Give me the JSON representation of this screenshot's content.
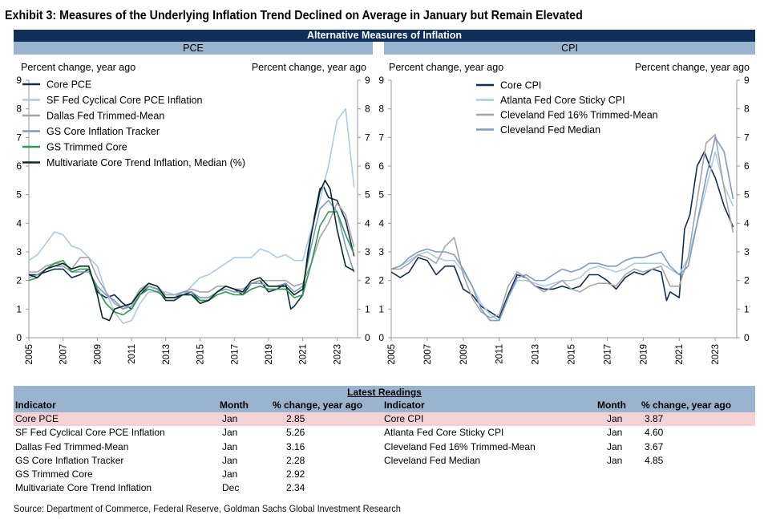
{
  "title": "Exhibit 3: Measures of the Underlying Inflation Trend Declined on Average in January but Remain Elevated",
  "banner": "Alternative Measures of Inflation",
  "source": "Source: Department of Commerce, Federal Reserve, Goldman Sachs Global Investment Research",
  "chart_data": [
    {
      "type": "line",
      "panel": "PCE",
      "ylabel_left": "Percent change, year ago",
      "ylabel_right": "Percent change, year ago",
      "ylim": [
        0,
        9
      ],
      "yticks": [
        "0",
        "1",
        "2",
        "3",
        "4",
        "5",
        "6",
        "7",
        "8",
        "9"
      ],
      "xlim": [
        2005,
        2024.2
      ],
      "xticks": [
        "2005",
        "2007",
        "2009",
        "2011",
        "2013",
        "2015",
        "2017",
        "2019",
        "2021",
        "2023"
      ],
      "legend_position": "top-left",
      "series": [
        {
          "name": "Core PCE",
          "color": "#0f2e5a",
          "width": 1.6,
          "x": [
            2005,
            2005.5,
            2006,
            2006.5,
            2007,
            2007.5,
            2008,
            2008.5,
            2009,
            2009.5,
            2010,
            2010.5,
            2011,
            2011.5,
            2012,
            2012.5,
            2013,
            2013.5,
            2014,
            2014.5,
            2015,
            2015.5,
            2016,
            2016.5,
            2017,
            2017.5,
            2018,
            2018.5,
            2019,
            2019.5,
            2020,
            2020.3,
            2020.5,
            2021,
            2021.3,
            2021.6,
            2022,
            2022.2,
            2022.5,
            2023,
            2023.5,
            2024
          ],
          "y": [
            2.2,
            2.2,
            2.3,
            2.4,
            2.4,
            2.1,
            2.2,
            2.4,
            1.6,
            1.4,
            1.5,
            1.2,
            1.0,
            1.5,
            1.8,
            1.7,
            1.3,
            1.3,
            1.5,
            1.6,
            1.3,
            1.3,
            1.6,
            1.8,
            1.7,
            1.5,
            1.9,
            2.0,
            1.6,
            1.7,
            1.9,
            1.0,
            1.1,
            1.5,
            3.0,
            4.0,
            5.2,
            5.3,
            4.9,
            4.8,
            4.1,
            2.85
          ]
        },
        {
          "name": "SF Fed Cyclical Core PCE Inflation",
          "color": "#a9cbe6",
          "width": 1.6,
          "x": [
            2005,
            2005.5,
            2006,
            2006.5,
            2007,
            2007.5,
            2008,
            2008.5,
            2009,
            2009.5,
            2010,
            2010.5,
            2011,
            2011.5,
            2012,
            2012.5,
            2013,
            2013.5,
            2014,
            2014.5,
            2015,
            2015.5,
            2016,
            2016.5,
            2017,
            2017.5,
            2018,
            2018.5,
            2019,
            2019.5,
            2020,
            2020.5,
            2021,
            2021.5,
            2022,
            2022.5,
            2023,
            2023.5,
            2024
          ],
          "y": [
            2.7,
            2.9,
            3.3,
            3.7,
            3.6,
            3.2,
            3.1,
            2.8,
            2.5,
            1.6,
            0.9,
            0.5,
            0.6,
            1.2,
            1.6,
            1.6,
            1.6,
            1.5,
            1.5,
            1.8,
            2.1,
            2.2,
            2.4,
            2.6,
            2.8,
            2.8,
            2.8,
            3.1,
            3.0,
            2.8,
            2.9,
            2.7,
            2.7,
            3.8,
            4.8,
            6.0,
            7.6,
            8.0,
            5.26
          ]
        },
        {
          "name": "Dallas Fed Trimmed-Mean",
          "color": "#a6a6a6",
          "width": 1.6,
          "x": [
            2005,
            2005.5,
            2006,
            2006.5,
            2007,
            2007.5,
            2008,
            2008.5,
            2009,
            2009.5,
            2010,
            2010.5,
            2011,
            2011.5,
            2012,
            2012.5,
            2013,
            2013.5,
            2014,
            2014.5,
            2015,
            2015.5,
            2016,
            2016.5,
            2017,
            2017.5,
            2018,
            2018.5,
            2019,
            2019.5,
            2020,
            2020.5,
            2021,
            2021.5,
            2022,
            2022.5,
            2023,
            2023.5,
            2024
          ],
          "y": [
            2.3,
            2.3,
            2.5,
            2.6,
            2.6,
            2.4,
            2.8,
            2.8,
            2.1,
            1.6,
            1.2,
            1.0,
            1.2,
            1.7,
            1.9,
            1.8,
            1.5,
            1.5,
            1.6,
            1.7,
            1.6,
            1.6,
            1.8,
            1.8,
            1.7,
            1.7,
            1.9,
            2.0,
            2.0,
            2.0,
            2.0,
            1.8,
            1.9,
            2.6,
            3.5,
            4.0,
            4.7,
            4.3,
            3.16
          ]
        },
        {
          "name": "GS Core Inflation Tracker",
          "color": "#7d9cc0",
          "width": 1.6,
          "x": [
            2005,
            2005.5,
            2006,
            2006.5,
            2007,
            2007.5,
            2008,
            2008.5,
            2009,
            2009.5,
            2010,
            2010.5,
            2011,
            2011.5,
            2012,
            2012.5,
            2013,
            2013.5,
            2014,
            2014.5,
            2015,
            2015.5,
            2016,
            2016.5,
            2017,
            2017.5,
            2018,
            2018.5,
            2019,
            2019.5,
            2020,
            2020.5,
            2021,
            2021.5,
            2022,
            2022.5,
            2023,
            2023.5,
            2024
          ],
          "y": [
            2.1,
            2.2,
            2.4,
            2.5,
            2.5,
            2.3,
            2.3,
            2.3,
            1.8,
            1.5,
            1.3,
            1.0,
            1.1,
            1.6,
            1.8,
            1.7,
            1.4,
            1.4,
            1.6,
            1.6,
            1.4,
            1.4,
            1.6,
            1.7,
            1.6,
            1.6,
            1.9,
            1.9,
            1.8,
            1.8,
            1.9,
            1.6,
            1.8,
            3.2,
            4.5,
            4.8,
            4.4,
            3.2,
            2.28
          ]
        },
        {
          "name": "GS Trimmed Core",
          "color": "#2e9a4e",
          "width": 1.6,
          "x": [
            2005,
            2005.5,
            2006,
            2006.5,
            2007,
            2007.5,
            2008,
            2008.5,
            2009,
            2009.5,
            2010,
            2010.5,
            2011,
            2011.5,
            2012,
            2012.5,
            2013,
            2013.5,
            2014,
            2014.5,
            2015,
            2015.5,
            2016,
            2016.5,
            2017,
            2017.5,
            2018,
            2018.5,
            2019,
            2019.5,
            2020,
            2020.5,
            2021,
            2021.5,
            2022,
            2022.5,
            2023,
            2023.5,
            2024
          ],
          "y": [
            2.0,
            2.1,
            2.4,
            2.6,
            2.7,
            2.3,
            2.4,
            2.4,
            1.7,
            1.2,
            0.9,
            0.8,
            1.0,
            1.5,
            1.7,
            1.6,
            1.4,
            1.4,
            1.5,
            1.5,
            1.3,
            1.3,
            1.5,
            1.6,
            1.5,
            1.5,
            1.7,
            1.8,
            1.7,
            1.7,
            1.7,
            1.4,
            1.5,
            2.6,
            3.9,
            4.4,
            4.4,
            3.6,
            2.92
          ]
        },
        {
          "name": "Multivariate Core Trend Inflation, Median (%)",
          "color": "#0b2a24",
          "width": 1.6,
          "x": [
            2005,
            2005.5,
            2006,
            2006.5,
            2007,
            2007.5,
            2008,
            2008.5,
            2009,
            2009.3,
            2009.7,
            2010,
            2010.5,
            2011,
            2011.5,
            2012,
            2012.5,
            2013,
            2013.5,
            2014,
            2014.5,
            2015,
            2015.5,
            2016,
            2016.5,
            2017,
            2017.5,
            2018,
            2018.5,
            2019,
            2019.5,
            2020,
            2020.5,
            2021,
            2021.5,
            2022,
            2022.3,
            2022.6,
            2023,
            2023.5,
            2024
          ],
          "y": [
            2.2,
            2.1,
            2.4,
            2.5,
            2.6,
            2.4,
            2.5,
            2.5,
            1.5,
            0.7,
            0.6,
            1.0,
            1.1,
            1.2,
            1.6,
            1.9,
            1.8,
            1.4,
            1.4,
            1.5,
            1.5,
            1.2,
            1.3,
            1.6,
            1.8,
            1.7,
            1.6,
            2.0,
            2.1,
            1.8,
            1.8,
            1.8,
            1.5,
            1.7,
            3.6,
            5.1,
            5.5,
            5.2,
            3.8,
            2.5,
            2.34
          ]
        }
      ]
    },
    {
      "type": "line",
      "panel": "CPI",
      "ylabel_left": "Percent change, year ago",
      "ylabel_right": "Percent change, year ago",
      "ylim": [
        0,
        9
      ],
      "yticks": [
        "0",
        "1",
        "2",
        "3",
        "4",
        "5",
        "6",
        "7",
        "8",
        "9"
      ],
      "xlim": [
        2005,
        2024.2
      ],
      "xticks": [
        "2005",
        "2007",
        "2009",
        "2011",
        "2013",
        "2015",
        "2017",
        "2019",
        "2021",
        "2023"
      ],
      "legend_position": "top-center",
      "series": [
        {
          "name": "Core CPI",
          "color": "#0f2e5a",
          "width": 1.6,
          "x": [
            2005,
            2005.5,
            2006,
            2006.5,
            2007,
            2007.5,
            2008,
            2008.5,
            2009,
            2009.5,
            2010,
            2010.5,
            2011,
            2011.5,
            2012,
            2012.5,
            2013,
            2013.5,
            2014,
            2014.5,
            2015,
            2015.5,
            2016,
            2016.5,
            2017,
            2017.5,
            2018,
            2018.5,
            2019,
            2019.5,
            2020,
            2020.3,
            2020.5,
            2021,
            2021.3,
            2021.6,
            2022,
            2022.4,
            2022.7,
            2023,
            2023.5,
            2024
          ],
          "y": [
            2.3,
            2.1,
            2.3,
            2.8,
            2.7,
            2.2,
            2.5,
            2.5,
            1.7,
            1.5,
            1.1,
            0.9,
            0.7,
            1.5,
            2.2,
            2.1,
            1.8,
            1.7,
            1.7,
            1.8,
            1.7,
            1.8,
            2.2,
            2.2,
            2.0,
            1.7,
            2.1,
            2.3,
            2.2,
            2.4,
            2.3,
            1.3,
            1.6,
            1.4,
            3.8,
            4.3,
            6.0,
            6.5,
            6.0,
            5.6,
            4.6,
            3.87
          ]
        },
        {
          "name": "Atlanta Fed Core Sticky CPI",
          "color": "#a9cbe6",
          "width": 1.6,
          "x": [
            2005,
            2005.5,
            2006,
            2006.5,
            2007,
            2007.5,
            2008,
            2008.5,
            2009,
            2009.5,
            2010,
            2010.5,
            2011,
            2011.5,
            2012,
            2012.5,
            2013,
            2013.5,
            2014,
            2014.5,
            2015,
            2015.5,
            2016,
            2016.5,
            2017,
            2017.5,
            2018,
            2018.5,
            2019,
            2019.5,
            2020,
            2020.5,
            2021,
            2021.5,
            2022,
            2022.5,
            2023,
            2023.5,
            2024
          ],
          "y": [
            2.4,
            2.5,
            2.7,
            2.9,
            3.0,
            2.8,
            2.7,
            2.7,
            2.3,
            1.8,
            1.2,
            0.8,
            0.6,
            1.4,
            2.0,
            2.0,
            1.9,
            1.8,
            1.9,
            2.0,
            2.0,
            2.1,
            2.4,
            2.5,
            2.4,
            2.3,
            2.4,
            2.6,
            2.6,
            2.6,
            2.6,
            2.4,
            2.2,
            2.8,
            4.0,
            5.2,
            6.5,
            5.3,
            4.6
          ]
        },
        {
          "name": "Cleveland Fed 16% Trimmed-Mean",
          "color": "#a6a6a6",
          "width": 1.6,
          "x": [
            2005,
            2005.5,
            2006,
            2006.5,
            2007,
            2007.5,
            2008,
            2008.5,
            2009,
            2009.5,
            2010,
            2010.5,
            2011,
            2011.5,
            2012,
            2012.5,
            2013,
            2013.5,
            2014,
            2014.5,
            2015,
            2015.5,
            2016,
            2016.5,
            2017,
            2017.5,
            2018,
            2018.5,
            2019,
            2019.5,
            2020,
            2020.5,
            2021,
            2021.5,
            2022,
            2022.5,
            2023,
            2023.5,
            2024
          ],
          "y": [
            2.4,
            2.4,
            2.6,
            2.9,
            2.8,
            2.6,
            3.2,
            3.5,
            2.2,
            1.4,
            0.9,
            0.7,
            0.8,
            1.8,
            2.3,
            2.1,
            1.8,
            1.6,
            1.8,
            2.0,
            1.7,
            1.6,
            1.8,
            1.9,
            1.9,
            1.8,
            2.2,
            2.4,
            2.3,
            2.4,
            2.5,
            1.8,
            1.8,
            2.8,
            4.8,
            6.8,
            7.1,
            5.2,
            3.67
          ]
        },
        {
          "name": "Cleveland Fed Median",
          "color": "#7d9cc0",
          "width": 1.6,
          "x": [
            2005,
            2005.5,
            2006,
            2006.5,
            2007,
            2007.5,
            2008,
            2008.5,
            2009,
            2009.5,
            2010,
            2010.5,
            2011,
            2011.5,
            2012,
            2012.5,
            2013,
            2013.5,
            2014,
            2014.5,
            2015,
            2015.5,
            2016,
            2016.5,
            2017,
            2017.5,
            2018,
            2018.5,
            2019,
            2019.5,
            2020,
            2020.5,
            2021,
            2021.5,
            2022,
            2022.5,
            2023,
            2023.5,
            2024
          ],
          "y": [
            2.4,
            2.5,
            2.8,
            3.0,
            3.1,
            3.0,
            3.0,
            2.9,
            2.4,
            1.8,
            1.0,
            0.6,
            0.6,
            1.4,
            2.1,
            2.2,
            2.0,
            2.0,
            2.2,
            2.4,
            2.3,
            2.4,
            2.6,
            2.6,
            2.5,
            2.5,
            2.7,
            2.8,
            2.8,
            2.9,
            3.0,
            2.5,
            2.2,
            2.5,
            4.0,
            5.6,
            7.0,
            6.5,
            4.85
          ]
        }
      ]
    }
  ],
  "readings": {
    "title": "Latest Readings",
    "headers": {
      "indicator": "Indicator",
      "month": "Month",
      "change": "% change, year ago"
    },
    "left": [
      {
        "indicator": "Core PCE",
        "month": "Jan",
        "value": "2.85",
        "highlight": true
      },
      {
        "indicator": "SF Fed Cyclical Core PCE Inflation",
        "month": "Jan",
        "value": "5.26",
        "highlight": false
      },
      {
        "indicator": "Dallas Fed Trimmed-Mean",
        "month": "Jan",
        "value": "3.16",
        "highlight": false
      },
      {
        "indicator": "GS Core Inflation Tracker",
        "month": "Jan",
        "value": "2.28",
        "highlight": false
      },
      {
        "indicator": "GS Trimmed Core",
        "month": "Jan",
        "value": "2.92",
        "highlight": false
      },
      {
        "indicator": "Multivariate Core Trend Inflation",
        "month": "Dec",
        "value": "2.34",
        "highlight": false
      }
    ],
    "right": [
      {
        "indicator": "Core CPI",
        "month": "Jan",
        "value": "3.87",
        "highlight": true
      },
      {
        "indicator": "Atlanta Fed Core Sticky CPI",
        "month": "Jan",
        "value": "4.60",
        "highlight": false
      },
      {
        "indicator": "Cleveland Fed 16% Trimmed-Mean",
        "month": "Jan",
        "value": "3.67",
        "highlight": false
      },
      {
        "indicator": "Cleveland Fed Median",
        "month": "Jan",
        "value": "4.85",
        "highlight": false
      }
    ]
  }
}
